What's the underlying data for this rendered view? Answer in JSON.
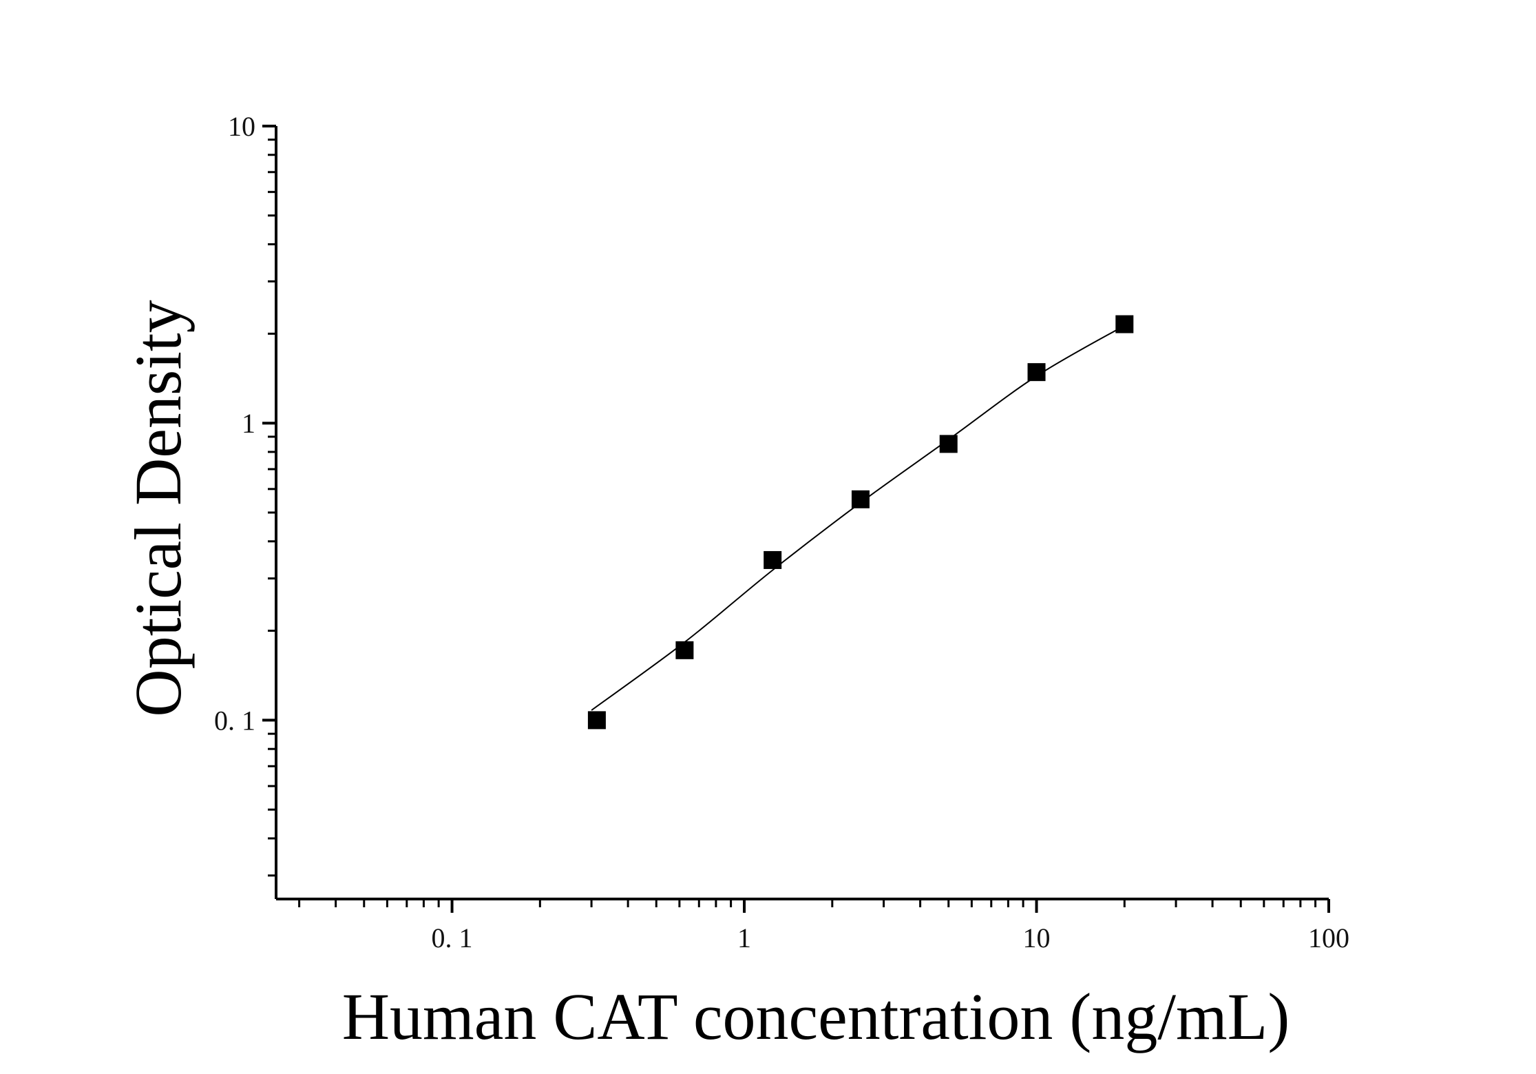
{
  "chart_data": {
    "type": "scatter",
    "title": "",
    "xlabel": "Human CAT concentration (ng/mL)",
    "ylabel": "Optical Density",
    "x_scale": "log",
    "y_scale": "log",
    "xlim": [
      0.025,
      100
    ],
    "ylim": [
      0.025,
      10
    ],
    "x_ticks": [
      {
        "value": 0.1,
        "label": "0. 1"
      },
      {
        "value": 1,
        "label": "1"
      },
      {
        "value": 10,
        "label": "10"
      },
      {
        "value": 100,
        "label": "100"
      }
    ],
    "y_ticks": [
      {
        "value": 0.1,
        "label": "0. 1"
      },
      {
        "value": 1,
        "label": "1"
      },
      {
        "value": 10,
        "label": "10"
      }
    ],
    "grid": false,
    "legend": "none",
    "series": [
      {
        "marker": "square",
        "color": "#000000",
        "points": [
          {
            "x": 0.313,
            "y": 0.1
          },
          {
            "x": 0.625,
            "y": 0.172
          },
          {
            "x": 1.25,
            "y": 0.346
          },
          {
            "x": 2.5,
            "y": 0.554
          },
          {
            "x": 5,
            "y": 0.851
          },
          {
            "x": 10,
            "y": 1.485
          },
          {
            "x": 20,
            "y": 2.153
          }
        ]
      }
    ],
    "fit_curve": {
      "color": "#000000",
      "points": [
        {
          "x": 0.3,
          "y": 0.108
        },
        {
          "x": 0.625,
          "y": 0.183
        },
        {
          "x": 1.25,
          "y": 0.32
        },
        {
          "x": 2.5,
          "y": 0.54
        },
        {
          "x": 5,
          "y": 0.88
        },
        {
          "x": 10,
          "y": 1.44
        },
        {
          "x": 20,
          "y": 2.13
        }
      ]
    }
  }
}
